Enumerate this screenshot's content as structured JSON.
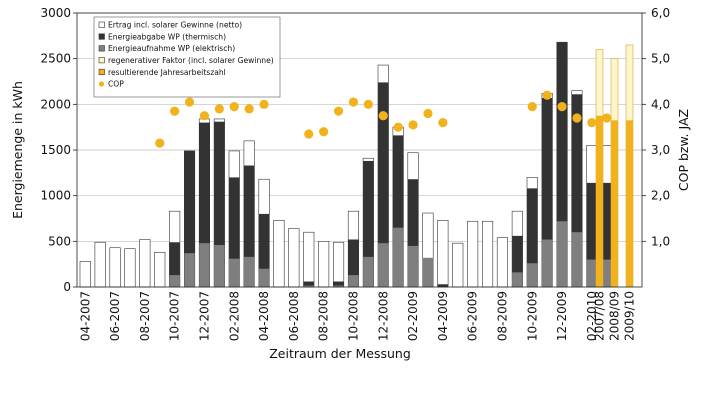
{
  "chart_data": {
    "type": "bar",
    "ylabel_left": "Energiemenge in kWh",
    "ylabel_right": "COP bzw. JAZ",
    "xlabel": "Zeitraum der Messung",
    "ylim_left": [
      0,
      3000
    ],
    "ylim_right": [
      0,
      6
    ],
    "yticks_left": [
      "0",
      "500",
      "1000",
      "1500",
      "2000",
      "2500",
      "3000"
    ],
    "yticks_right": [
      "1,0",
      "2,0",
      "3,0",
      "4,0",
      "5,0",
      "6,0"
    ],
    "x_tick_labels": [
      "04-2007",
      "06-2007",
      "08-2007",
      "10-2007",
      "12-2007",
      "02-2008",
      "04-2008",
      "06-2008",
      "08-2008",
      "10-2008",
      "12-2008",
      "02-2009",
      "04-2009",
      "06-2009",
      "08-2009",
      "10-2009",
      "12-2009",
      "02-2010",
      "2007/08",
      "2008/09",
      "2009/10"
    ],
    "legend": [
      {
        "label": "Ertrag incl. solarer Gewinne (netto)",
        "color": "#ffffff"
      },
      {
        "label": "Energieabgabe WP (thermisch)",
        "color": "#333333"
      },
      {
        "label": "Energieaufnahme WP (elektrisch)",
        "color": "#7f7f7f"
      },
      {
        "label": "regenerativer Faktor (incl. solarer Gewinne)",
        "color": "#fff6c8"
      },
      {
        "label": "resultierende Jahresarbeitszahl",
        "color": "#f2b21c"
      },
      {
        "label": "COP",
        "color": "#f2b21c"
      }
    ],
    "colors": {
      "ertrag": "#ffffff",
      "thermisch": "#333333",
      "elektrisch": "#7f7f7f",
      "regenerativ": "#fff6c8",
      "jaz": "#f2b21c",
      "cop": "#f2b21c"
    },
    "months": [
      "04-2007",
      "05-2007",
      "06-2007",
      "07-2007",
      "08-2007",
      "09-2007",
      "10-2007",
      "11-2007",
      "12-2007",
      "01-2008",
      "02-2008",
      "03-2008",
      "04-2008",
      "05-2008",
      "06-2008",
      "07-2008",
      "08-2008",
      "09-2008",
      "10-2008",
      "11-2008",
      "12-2008",
      "01-2009",
      "02-2009",
      "03-2009",
      "04-2009",
      "05-2009",
      "06-2009",
      "07-2009",
      "08-2009",
      "09-2009",
      "10-2009",
      "11-2009",
      "12-2009",
      "01-2010",
      "02-2010",
      "03-2010"
    ],
    "ertrag": [
      280,
      490,
      430,
      420,
      520,
      380,
      830,
      1490,
      1840,
      1840,
      1490,
      1600,
      1180,
      730,
      640,
      600,
      500,
      490,
      830,
      1410,
      2430,
      1750,
      1470,
      810,
      730,
      480,
      720,
      720,
      540,
      830,
      1200,
      2120,
      2680,
      2150,
      1550,
      1550
    ],
    "thermisch": [
      0,
      0,
      0,
      0,
      0,
      0,
      490,
      1490,
      1800,
      1810,
      1200,
      1330,
      800,
      0,
      0,
      60,
      0,
      60,
      520,
      1380,
      2240,
      1660,
      1180,
      0,
      30,
      0,
      0,
      0,
      0,
      560,
      1080,
      2070,
      2680,
      2110,
      1140,
      1140
    ],
    "elektrisch": [
      0,
      0,
      0,
      0,
      0,
      0,
      130,
      370,
      480,
      460,
      310,
      330,
      200,
      0,
      0,
      15,
      0,
      15,
      130,
      330,
      480,
      650,
      450,
      320,
      0,
      0,
      0,
      0,
      0,
      160,
      260,
      520,
      720,
      600,
      300,
      300
    ],
    "cop": [
      null,
      null,
      null,
      null,
      null,
      3.15,
      3.85,
      4.05,
      3.75,
      3.9,
      3.95,
      3.9,
      4.0,
      null,
      null,
      3.35,
      3.4,
      3.85,
      4.05,
      4.0,
      3.75,
      3.5,
      3.55,
      3.8,
      3.6,
      null,
      null,
      null,
      null,
      null,
      3.95,
      4.2,
      3.95,
      3.7,
      3.6,
      3.7
    ],
    "annual": [
      {
        "label": "2007/08",
        "jaz": 3.75,
        "regenerativ": 5.2
      },
      {
        "label": "2008/09",
        "jaz": 3.65,
        "regenerativ": 5.0
      },
      {
        "label": "2009/10",
        "jaz": 3.65,
        "regenerativ": 5.3
      }
    ]
  }
}
